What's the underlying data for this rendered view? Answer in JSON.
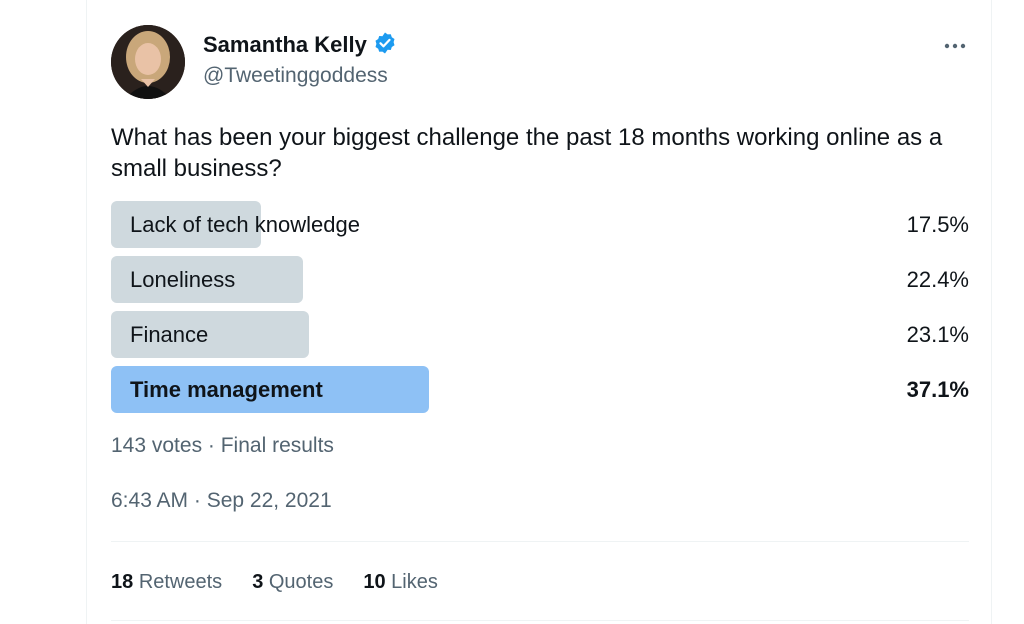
{
  "author": {
    "name": "Samantha Kelly",
    "handle": "@Tweetinggoddess",
    "verified": true,
    "verified_color": "#1d9bf0"
  },
  "tweet": {
    "text": "What has been your biggest challenge the past 18 months working online as a small business?"
  },
  "poll": {
    "options": [
      {
        "label": "Lack of tech knowledge",
        "percent_label": "17.5%",
        "percent": 17.5,
        "winner": false
      },
      {
        "label": "Loneliness",
        "percent_label": "22.4%",
        "percent": 22.4,
        "winner": false
      },
      {
        "label": "Finance",
        "percent_label": "23.1%",
        "percent": 23.1,
        "winner": false
      },
      {
        "label": "Time management",
        "percent_label": "37.1%",
        "percent": 37.1,
        "winner": true
      }
    ],
    "summary": "143 votes · Final results",
    "bar_color": "#cfd9de",
    "winner_bar_color": "#8ec1f5"
  },
  "timestamp": "6:43 AM · Sep 22, 2021",
  "stats": {
    "retweets_count": "18",
    "retweets_label": "Retweets",
    "quotes_count": "3",
    "quotes_label": "Quotes",
    "likes_count": "10",
    "likes_label": "Likes"
  },
  "icons": {
    "more": "more-horizontal-icon",
    "verified": "verified-badge-icon"
  }
}
